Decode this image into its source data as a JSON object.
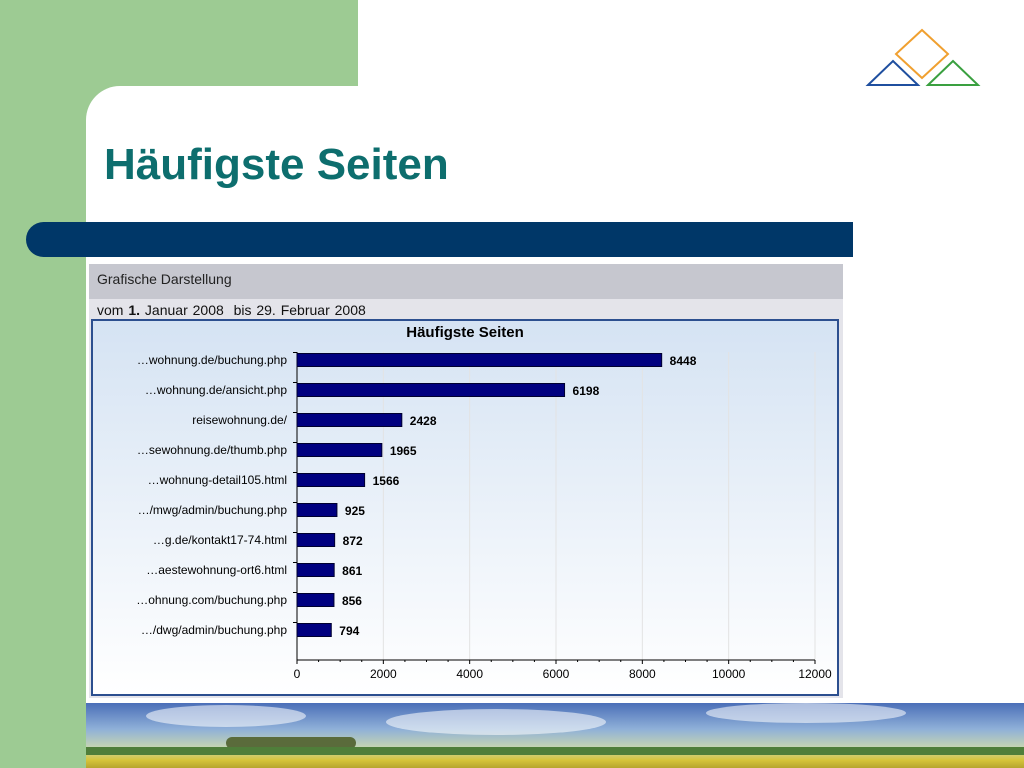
{
  "slide": {
    "title": "Häufigste Seiten"
  },
  "screenshot": {
    "heading": "Grafische Darstellung",
    "range_prefix": "vom",
    "range_day1": "1.",
    "range_month1": "Januar",
    "range_year1": "2008",
    "range_sep": "bis",
    "range_day2": "29.",
    "range_month2": "Februar",
    "range_year2": "2008"
  },
  "colors": {
    "bar": "#000080",
    "title_text": "#0d6e6e",
    "title_bar": "#003768",
    "side_panel": "#9dcb93"
  },
  "chart_data": {
    "type": "bar",
    "orientation": "horizontal",
    "title": "Häufigste Seiten",
    "categories": [
      "…wohnung.de/buchung.php",
      "…wohnung.de/ansicht.php",
      "reisewohnung.de/",
      "…sewohnung.de/thumb.php",
      "…wohnung-detail105.html",
      "…/mwg/admin/buchung.php",
      "…g.de/kontakt17-74.html",
      "…aestewohnung-ort6.html",
      "…ohnung.com/buchung.php",
      "…/dwg/admin/buchung.php"
    ],
    "values": [
      8448,
      6198,
      2428,
      1965,
      1566,
      925,
      872,
      861,
      856,
      794
    ],
    "xlim": [
      0,
      12000
    ],
    "xticks": [
      0,
      2000,
      4000,
      6000,
      8000,
      10000,
      12000
    ],
    "xlabel": "",
    "ylabel": "",
    "grid": true,
    "data_labels": true
  }
}
